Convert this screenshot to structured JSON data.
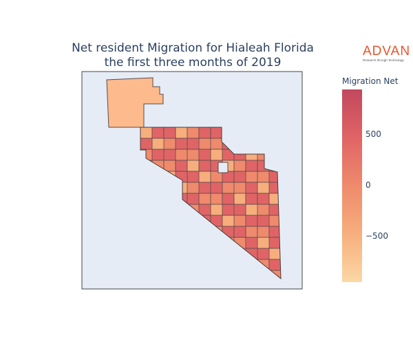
{
  "title_line1": "Net resident Migration for Hialeah Florida",
  "title_line2": "the first three months of 2019",
  "logo": {
    "name": "ADVAN",
    "tagline": "Research through Technology",
    "color": "#e8542a"
  },
  "colorbar": {
    "title": "Migration Net",
    "ticks": [
      {
        "label": "500",
        "value": 500
      },
      {
        "label": "0",
        "value": 0
      },
      {
        "label": "−500",
        "value": -500
      }
    ],
    "range": [
      -900,
      900
    ],
    "colors": [
      "#fbd8a5",
      "#f7ae7d",
      "#ef8a6c",
      "#e06466",
      "#c2485e"
    ]
  },
  "map": {
    "background": "#e5ecf6",
    "border_color": "#5a4a4a",
    "regions": [
      {
        "value": -550
      },
      {
        "value": 120
      },
      {
        "value": -300
      },
      {
        "value": 480
      },
      {
        "value": -120
      },
      {
        "value": 250
      },
      {
        "value": -420
      },
      {
        "value": 60
      },
      {
        "value": 700
      },
      {
        "value": -200
      },
      {
        "value": 310
      },
      {
        "value": -80
      },
      {
        "value": 520
      },
      {
        "value": -600
      },
      {
        "value": 150
      },
      {
        "value": -350
      },
      {
        "value": 400
      },
      {
        "value": -30
      },
      {
        "value": 820
      },
      {
        "value": -250
      },
      {
        "value": 200
      },
      {
        "value": -480
      },
      {
        "value": 90
      },
      {
        "value": 350
      },
      {
        "value": -150
      },
      {
        "value": 610
      },
      {
        "value": -700
      },
      {
        "value": 30
      },
      {
        "value": 270
      },
      {
        "value": -90
      },
      {
        "value": 450
      },
      {
        "value": -320
      },
      {
        "value": 170
      },
      {
        "value": -520
      },
      {
        "value": 380
      },
      {
        "value": 10
      },
      {
        "value": -210
      },
      {
        "value": 560
      },
      {
        "value": -400
      },
      {
        "value": 230
      },
      {
        "value": -60
      },
      {
        "value": 660
      },
      {
        "value": -280
      },
      {
        "value": 140
      },
      {
        "value": -650
      },
      {
        "value": 320
      },
      {
        "value": -110
      },
      {
        "value": 490
      },
      {
        "value": -380
      },
      {
        "value": 80
      }
    ]
  }
}
